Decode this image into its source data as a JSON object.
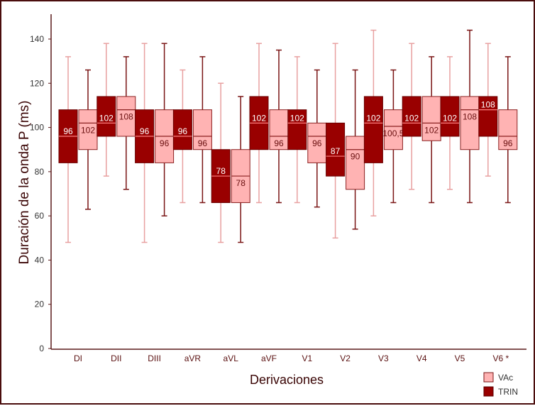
{
  "chart_data": {
    "type": "boxplot",
    "title": "",
    "xlabel": "Derivaciones",
    "ylabel": "Duración de la onda P (ms)",
    "ylim": [
      0,
      150
    ],
    "yticks": [
      0,
      20,
      40,
      60,
      80,
      100,
      120,
      140
    ],
    "categories": [
      "DI",
      "DII",
      "DIII",
      "aVR",
      "aVL",
      "aVF",
      "V1",
      "V2",
      "V3",
      "V4",
      "V5",
      "V6 *"
    ],
    "legend": {
      "placement": "bottom-right",
      "entries": [
        "VAc",
        "TRIN"
      ]
    },
    "colors": {
      "TRIN": "#990000",
      "VAc": "#ffb3b3",
      "TRIN_whisker": "#e8a0a0",
      "VAc_whisker": "#7a1515",
      "axis": "#5a1a1a"
    },
    "series": [
      {
        "name": "TRIN",
        "boxes": [
          {
            "min": 48,
            "q1": 84,
            "median": 96,
            "q3": 108,
            "max": 132,
            "label": "96"
          },
          {
            "min": 78,
            "q1": 96,
            "median": 102,
            "q3": 114,
            "max": 138,
            "label": "102"
          },
          {
            "min": 48,
            "q1": 84,
            "median": 96,
            "q3": 108,
            "max": 138,
            "label": "96"
          },
          {
            "min": 66,
            "q1": 90,
            "median": 96,
            "q3": 108,
            "max": 126,
            "label": "96"
          },
          {
            "min": 48,
            "q1": 66,
            "median": 78,
            "q3": 90,
            "max": 120,
            "label": "78"
          },
          {
            "min": 66,
            "q1": 90,
            "median": 102,
            "q3": 114,
            "max": 138,
            "label": "102"
          },
          {
            "min": 66,
            "q1": 90,
            "median": 102,
            "q3": 108,
            "max": 132,
            "label": "102"
          },
          {
            "min": 50,
            "q1": 78,
            "median": 87,
            "q3": 102,
            "max": 138,
            "label": "87"
          },
          {
            "min": 60,
            "q1": 84,
            "median": 102,
            "q3": 114,
            "max": 144,
            "label": "102"
          },
          {
            "min": 72,
            "q1": 96,
            "median": 102,
            "q3": 114,
            "max": 138,
            "label": "102"
          },
          {
            "min": 72,
            "q1": 96,
            "median": 102,
            "q3": 114,
            "max": 132,
            "label": "102"
          },
          {
            "min": 78,
            "q1": 96,
            "median": 108,
            "q3": 114,
            "max": 138,
            "label": "108"
          }
        ]
      },
      {
        "name": "VAc",
        "boxes": [
          {
            "min": 63,
            "q1": 90,
            "median": 102,
            "q3": 108,
            "max": 126,
            "label": "102"
          },
          {
            "min": 72,
            "q1": 96,
            "median": 108,
            "q3": 114,
            "max": 132,
            "label": "108"
          },
          {
            "min": 60,
            "q1": 84,
            "median": 96,
            "q3": 108,
            "max": 138,
            "label": "96"
          },
          {
            "min": 66,
            "q1": 90,
            "median": 96,
            "q3": 108,
            "max": 132,
            "label": "96"
          },
          {
            "min": 48,
            "q1": 66,
            "median": 78,
            "q3": 90,
            "max": 114,
            "label": "78"
          },
          {
            "min": 66,
            "q1": 90,
            "median": 96,
            "q3": 108,
            "max": 135,
            "label": "96"
          },
          {
            "min": 64,
            "q1": 84,
            "median": 96,
            "q3": 102,
            "max": 126,
            "label": "96"
          },
          {
            "min": 54,
            "q1": 72,
            "median": 90,
            "q3": 96,
            "max": 126,
            "label": "90"
          },
          {
            "min": 66,
            "q1": 90,
            "median": 100.5,
            "q3": 108,
            "max": 126,
            "label": "100,5"
          },
          {
            "min": 66,
            "q1": 94,
            "median": 102,
            "q3": 114,
            "max": 132,
            "label": "102"
          },
          {
            "min": 66,
            "q1": 90,
            "median": 108,
            "q3": 114,
            "max": 144,
            "label": "108"
          },
          {
            "min": 66,
            "q1": 90,
            "median": 96,
            "q3": 108,
            "max": 132,
            "label": "96"
          }
        ]
      }
    ]
  }
}
